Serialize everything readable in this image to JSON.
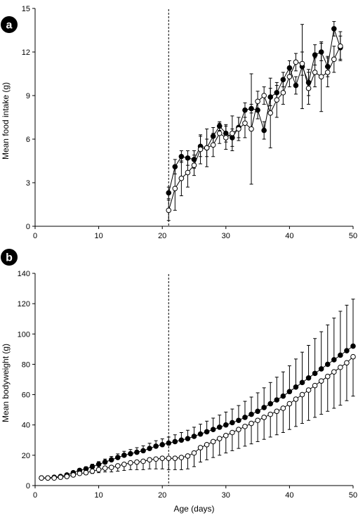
{
  "chart_data": [
    {
      "type": "line",
      "panel_label": "a",
      "title": "",
      "xlabel": "",
      "ylabel": "Mean food intake (g)",
      "xlim": [
        0,
        50
      ],
      "ylim": [
        0,
        15
      ],
      "xticks": [
        "0",
        "10",
        "20",
        "30",
        "40",
        "50"
      ],
      "yticks": [
        "0",
        "3",
        "6",
        "9",
        "12",
        "15"
      ],
      "reference_line_x": 21,
      "grid": false,
      "legend": "none",
      "series": [
        {
          "marker": "filled",
          "color": "#000000",
          "x": [
            21,
            22,
            23,
            24,
            25,
            26,
            27,
            28,
            29,
            30,
            31,
            32,
            33,
            34,
            35,
            36,
            37,
            38,
            39,
            40,
            41,
            42,
            43,
            44,
            45,
            46,
            47,
            48
          ],
          "y": [
            2.3,
            4.1,
            4.8,
            4.7,
            4.6,
            5.5,
            5.4,
            6.2,
            6.9,
            6.4,
            6.1,
            6.8,
            8.0,
            8.1,
            8.0,
            6.6,
            8.9,
            9.2,
            10.1,
            10.9,
            9.7,
            11.0,
            9.9,
            11.8,
            12.0,
            11.0,
            13.6,
            12.3
          ],
          "err": [
            0.4,
            0.5,
            0.4,
            0.5,
            0.6,
            0.7,
            0.6,
            0.6,
            0.3,
            0.6,
            0.6,
            0.7,
            0.5,
            0.3,
            0.6,
            0.6,
            0.6,
            0.5,
            0.5,
            0.5,
            0.6,
            2.9,
            0.9,
            0.7,
            0.6,
            0.7,
            0.5,
            0.8
          ]
        },
        {
          "marker": "open",
          "color": "#000000",
          "x": [
            21,
            22,
            23,
            24,
            25,
            26,
            27,
            28,
            29,
            30,
            31,
            32,
            33,
            34,
            35,
            36,
            37,
            38,
            39,
            40,
            41,
            42,
            43,
            44,
            45,
            46,
            47,
            48
          ],
          "y": [
            1.1,
            2.6,
            3.3,
            3.7,
            4.2,
            5.3,
            5.4,
            5.6,
            6.4,
            6.1,
            6.4,
            6.7,
            7.1,
            6.7,
            8.6,
            9.0,
            7.8,
            8.7,
            9.2,
            10.3,
            11.3,
            11.2,
            9.5,
            10.6,
            10.3,
            10.6,
            11.5,
            12.4
          ],
          "err": [
            0.7,
            1.5,
            1.2,
            1.0,
            0.7,
            1.0,
            1.3,
            0.8,
            0.7,
            0.8,
            1.2,
            0.8,
            1.0,
            3.8,
            0.7,
            0.6,
            2.4,
            1.2,
            0.8,
            0.7,
            0.6,
            0.8,
            1.1,
            1.0,
            2.4,
            1.0,
            0.9,
            1.0
          ]
        }
      ]
    },
    {
      "type": "line",
      "panel_label": "b",
      "title": "",
      "xlabel": "Age (days)",
      "ylabel": "Mean bodyweight (g)",
      "xlim": [
        0,
        50
      ],
      "ylim": [
        0,
        140
      ],
      "xticks": [
        "0",
        "10",
        "20",
        "30",
        "40",
        "50"
      ],
      "yticks": [
        "0",
        "20",
        "40",
        "60",
        "80",
        "100",
        "120",
        "140"
      ],
      "reference_line_x": 21,
      "grid": false,
      "legend": "none",
      "series": [
        {
          "marker": "filled",
          "color": "#000000",
          "x": [
            1,
            2,
            3,
            4,
            5,
            6,
            7,
            8,
            9,
            10,
            11,
            12,
            13,
            14,
            15,
            16,
            17,
            18,
            19,
            20,
            21,
            22,
            23,
            24,
            25,
            26,
            27,
            28,
            29,
            30,
            31,
            32,
            33,
            34,
            35,
            36,
            37,
            38,
            39,
            40,
            41,
            42,
            43,
            44,
            45,
            46,
            47,
            48,
            49,
            50
          ],
          "y": [
            5,
            5,
            5.5,
            6,
            7,
            8.5,
            10,
            11,
            12.5,
            14,
            15.5,
            17,
            18.5,
            20,
            21,
            22,
            23,
            24.5,
            26,
            27,
            28,
            29,
            30,
            31,
            32.5,
            34,
            35.5,
            37,
            38.5,
            40,
            41.5,
            43,
            45,
            47,
            49,
            51.5,
            54,
            56.5,
            59,
            62,
            65,
            68,
            71,
            74,
            77,
            80,
            83,
            86,
            89,
            92
          ],
          "err_up": [
            0,
            0,
            0,
            0.6,
            0.8,
            1,
            1.2,
            1.4,
            1.6,
            1.8,
            2,
            2.2,
            2.4,
            2.6,
            2.8,
            3,
            3.2,
            3.4,
            3.6,
            3.8,
            4,
            4.5,
            5,
            5.5,
            6,
            6.5,
            7,
            7.5,
            8,
            8.5,
            9,
            9.8,
            10.6,
            11.4,
            12.2,
            13,
            14,
            15,
            16,
            17,
            18.5,
            20,
            21.5,
            23,
            24.5,
            26,
            27.5,
            29,
            30,
            31
          ]
        },
        {
          "marker": "open",
          "color": "#000000",
          "x": [
            1,
            2,
            3,
            4,
            5,
            6,
            7,
            8,
            9,
            10,
            11,
            12,
            13,
            14,
            15,
            16,
            17,
            18,
            19,
            20,
            21,
            22,
            23,
            24,
            25,
            26,
            27,
            28,
            29,
            30,
            31,
            32,
            33,
            34,
            35,
            36,
            37,
            38,
            39,
            40,
            41,
            42,
            43,
            44,
            45,
            46,
            47,
            48,
            49,
            50
          ],
          "y": [
            5,
            5,
            5,
            5.5,
            6,
            7,
            8,
            8.5,
            9.5,
            10.5,
            11.5,
            12,
            13,
            14,
            15,
            15.5,
            16,
            17,
            17.5,
            18,
            18,
            18,
            18.5,
            19.5,
            21.5,
            25,
            27,
            29,
            31,
            33,
            35,
            37,
            39,
            41,
            43,
            45,
            47,
            49,
            51,
            54,
            57,
            60,
            63,
            66,
            69,
            72,
            75,
            78,
            81,
            85
          ],
          "err_down": [
            0,
            0,
            0,
            0.4,
            0.6,
            0.8,
            1,
            1.2,
            1.5,
            2,
            2.5,
            3,
            3.5,
            4,
            4.5,
            5,
            5.5,
            6,
            6.5,
            7,
            7.5,
            7.5,
            8,
            8.5,
            9,
            9.5,
            10,
            10.5,
            11,
            11.5,
            12,
            12.5,
            13,
            13.5,
            14,
            14.5,
            15,
            15.5,
            16,
            17,
            18,
            19,
            20,
            21,
            22,
            23,
            24,
            25,
            25,
            26
          ]
        }
      ]
    }
  ]
}
